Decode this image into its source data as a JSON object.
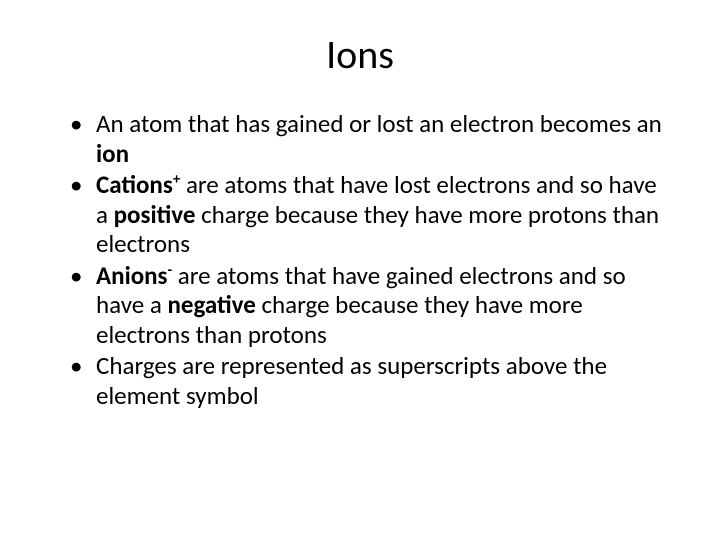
{
  "slide": {
    "title": "Ions",
    "title_fontsize": 40,
    "body_fontsize": 25,
    "background_color": "#ffffff",
    "text_color": "#000000",
    "bullets": [
      {
        "pre": "An atom that has gained or lost an electron becomes an ",
        "bold": "ion",
        "post": ""
      },
      {
        "pre": "",
        "bold": "Cations",
        "sup": "+",
        "mid": " are atoms that have lost electrons and so have a ",
        "bold2": "positive",
        "post": " charge because they have more protons than electrons"
      },
      {
        "pre": "",
        "bold": "Anions",
        "sup": "-",
        "mid": " are atoms that have gained electrons and so have a ",
        "bold2": "negative",
        "post": " charge because they have more electrons than protons"
      },
      {
        "pre": "Charges are represented as superscripts above the element symbol",
        "bold": "",
        "post": ""
      }
    ]
  }
}
